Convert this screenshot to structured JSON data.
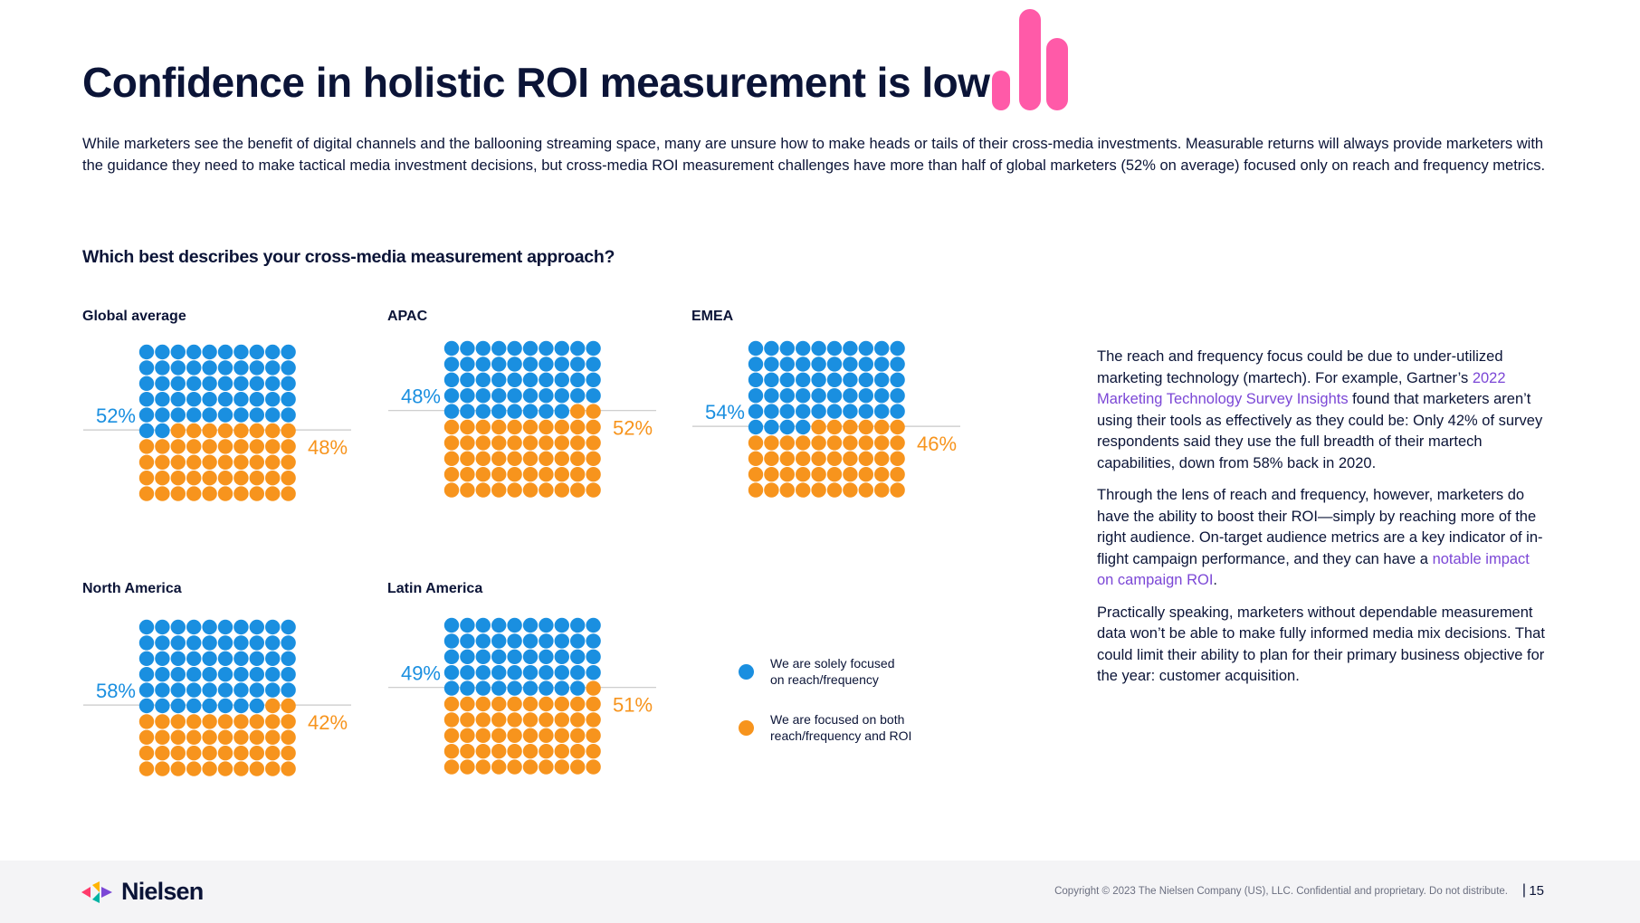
{
  "header": {
    "title": "Confidence in holistic ROI measurement is low",
    "intro": "While marketers see the benefit of digital channels and the ballooning streaming space, many are unsure how to make heads or tails of their cross-media investments. Measurable returns will always provide marketers with the guidance they need to make tactical media investment decisions, but cross-media ROI measurement challenges have more than half of global marketers (52% on average) focused only on reach and frequency metrics."
  },
  "question": "Which best describes your cross-media measurement approach?",
  "colors": {
    "reach": "#1a8fe0",
    "roi": "#f7941d",
    "divider": "#c8c8c8",
    "accent_pink": "#ff5aa8",
    "link": "#7b47d6"
  },
  "chart_data": [
    {
      "type": "waffle",
      "title": "Global average",
      "categories": [
        "We are solely focused on reach/frequency",
        "We are focused on both reach/frequency and ROI"
      ],
      "values": [
        52,
        48
      ],
      "labels": [
        "52%",
        "48%"
      ],
      "total": 100
    },
    {
      "type": "waffle",
      "title": "APAC",
      "categories": [
        "We are solely focused on reach/frequency",
        "We are focused on both reach/frequency and ROI"
      ],
      "values": [
        48,
        52
      ],
      "labels": [
        "48%",
        "52%"
      ],
      "total": 100
    },
    {
      "type": "waffle",
      "title": "EMEA",
      "categories": [
        "We are solely focused on reach/frequency",
        "We are focused on both reach/frequency and ROI"
      ],
      "values": [
        54,
        46
      ],
      "labels": [
        "54%",
        "46%"
      ],
      "total": 100
    },
    {
      "type": "waffle",
      "title": "North America",
      "categories": [
        "We are solely focused on reach/frequency",
        "We are focused on both reach/frequency and ROI"
      ],
      "values": [
        58,
        42
      ],
      "labels": [
        "58%",
        "42%"
      ],
      "total": 100
    },
    {
      "type": "waffle",
      "title": "Latin America",
      "categories": [
        "We are solely focused on reach/frequency",
        "We are focused on both reach/frequency and ROI"
      ],
      "values": [
        49,
        51
      ],
      "labels": [
        "49%",
        "51%"
      ],
      "total": 100
    }
  ],
  "legend": [
    {
      "line1": "We are solely focused",
      "line2": "on reach/frequency"
    },
    {
      "line1": "We are focused on both",
      "line2": "reach/frequency and ROI"
    }
  ],
  "side": {
    "p1_a": "The reach and frequency focus could be due to under-utilized marketing technology (martech). For example, Gartner’s ",
    "p1_link": "2022 Marketing Technology Survey Insights",
    "p1_b": " found that marketers aren’t using their tools as effectively as they could be: Only 42% of survey respondents said they use the full breadth of their martech capabilities, down from 58% back in 2020.",
    "p2_a": "Through the lens of reach and frequency, however, marketers do have the ability to boost their ROI—simply by reaching more of the right audience. On-target audience metrics are a key indicator of in-flight campaign performance, and they can have a ",
    "p2_link": "notable impact on campaign ROI",
    "p2_b": ".",
    "p3": "Practically speaking, marketers without dependable measurement data won’t be able to make fully informed media mix decisions. That could limit their ability to plan for their primary business objective for the year: customer acquisition."
  },
  "footer": {
    "logo": "Nielsen",
    "copyright": "Copyright © 2023 The Nielsen Company (US), LLC. Confidential and proprietary. Do not distribute.",
    "separator": "|",
    "page": "15"
  }
}
